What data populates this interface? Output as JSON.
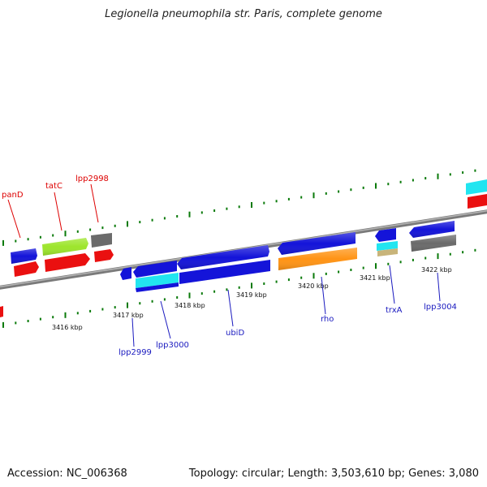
{
  "title": "Legionella pneumophila str. Paris, complete genome",
  "accession_label": "Accession: NC_006368",
  "summary_label": "Topology: circular; Length: 3,503,610 bp; Genes: 3,080",
  "colors": {
    "backbone": "#8c8c8c",
    "dots": "#0a7a0a",
    "blue": "#1414d9",
    "red": "#ea1010",
    "lime": "#9de52c",
    "gray": "#6b6b6b",
    "cyan": "#22e5f0",
    "tan": "#c8b47a",
    "orange": "#ff9416",
    "label_red": "#dd0000",
    "label_blue": "#1a1abf"
  },
  "tick_labels": [
    "3416 kbp",
    "3417 kbp",
    "3418 kbp",
    "3419 kbp",
    "3420 kbp",
    "3421 kbp",
    "3422 kbp"
  ],
  "gene_labels_top": [
    "panD",
    "tatC",
    "lpp2998"
  ],
  "gene_labels_bottom": [
    "lpp2999",
    "lpp3000",
    "ubiD",
    "rho",
    "trxA",
    "lpp3004"
  ]
}
